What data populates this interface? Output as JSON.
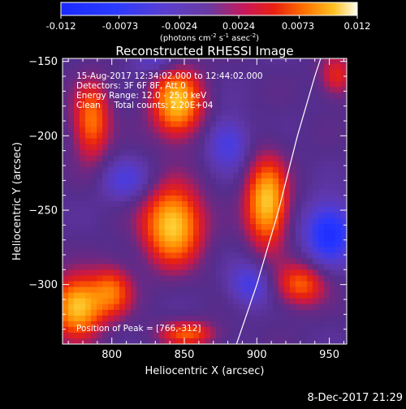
{
  "colorbar": {
    "ticks": [
      "-0.012",
      "-0.0073",
      "-0.0024",
      "0.0024",
      "0.0073",
      "0.012"
    ],
    "unit_main": "(photons cm",
    "unit_sup1": "-2",
    "unit_mid": " s",
    "unit_sup2": "-1",
    "unit_end": " asec",
    "unit_sup3": "-2",
    "unit_close": ")",
    "min": -0.012,
    "max": 0.012
  },
  "title": "Reconstructed RHESSI Image",
  "info": {
    "line1": "15-Aug-2017 12:34:02.000 to 12:44:02.000",
    "line2": "Detectors: 3F 6F 8F, Att 0",
    "line3": "Energy Range: 12.0 - 25.0 keV",
    "line4": "Clean     Total counts: 2.20E+04",
    "peak": "Position of Peak = [766,-312]"
  },
  "footer_timestamp": "8-Dec-2017 21:29",
  "chart_data": {
    "type": "heatmap",
    "title": "Reconstructed RHESSI Image",
    "xlabel": "Heliocentric X (arcsec)",
    "ylabel": "Heliocentric Y (arcsec)",
    "xlim": [
      766,
      962
    ],
    "ylim": [
      -340,
      -148
    ],
    "x_ticks": [
      800,
      850,
      900,
      950
    ],
    "y_ticks": [
      -150,
      -200,
      -250,
      -300
    ],
    "x_tick_labels": [
      "800",
      "850",
      "900",
      "950"
    ],
    "y_tick_labels": [
      "−150",
      "−200",
      "−250",
      "−300"
    ],
    "sources": [
      {
        "x": 845,
        "y": -178,
        "sx": 12,
        "sy": 16,
        "amp": 0.0115
      },
      {
        "x": 842,
        "y": -260,
        "sx": 14,
        "sy": 18,
        "amp": 0.0125
      },
      {
        "x": 907,
        "y": -245,
        "sx": 10,
        "sy": 20,
        "amp": 0.012
      },
      {
        "x": 776,
        "y": -315,
        "sx": 12,
        "sy": 14,
        "amp": 0.012
      },
      {
        "x": 786,
        "y": -190,
        "sx": 9,
        "sy": 18,
        "amp": 0.0085
      },
      {
        "x": 800,
        "y": -305,
        "sx": 10,
        "sy": 12,
        "amp": 0.0075
      },
      {
        "x": 930,
        "y": -300,
        "sx": 12,
        "sy": 10,
        "amp": 0.0075
      },
      {
        "x": 955,
        "y": -160,
        "sx": 8,
        "sy": 10,
        "amp": 0.0055
      },
      {
        "x": 852,
        "y": -333,
        "sx": 14,
        "sy": 6,
        "amp": 0.007
      },
      {
        "x": 950,
        "y": -265,
        "sx": 12,
        "sy": 14,
        "amp": -0.0085
      },
      {
        "x": 895,
        "y": -300,
        "sx": 10,
        "sy": 10,
        "amp": -0.005
      },
      {
        "x": 880,
        "y": -205,
        "sx": 10,
        "sy": 12,
        "amp": -0.005
      },
      {
        "x": 810,
        "y": -230,
        "sx": 12,
        "sy": 10,
        "amp": -0.004
      },
      {
        "x": 830,
        "y": -150,
        "sx": 12,
        "sy": 6,
        "amp": -0.0035
      }
    ],
    "background": -0.0026,
    "limb": [
      [
        886,
        -340
      ],
      [
        900,
        -300
      ],
      [
        915,
        -250
      ],
      [
        928,
        -200
      ],
      [
        940,
        -160
      ],
      [
        944,
        -148
      ]
    ]
  }
}
